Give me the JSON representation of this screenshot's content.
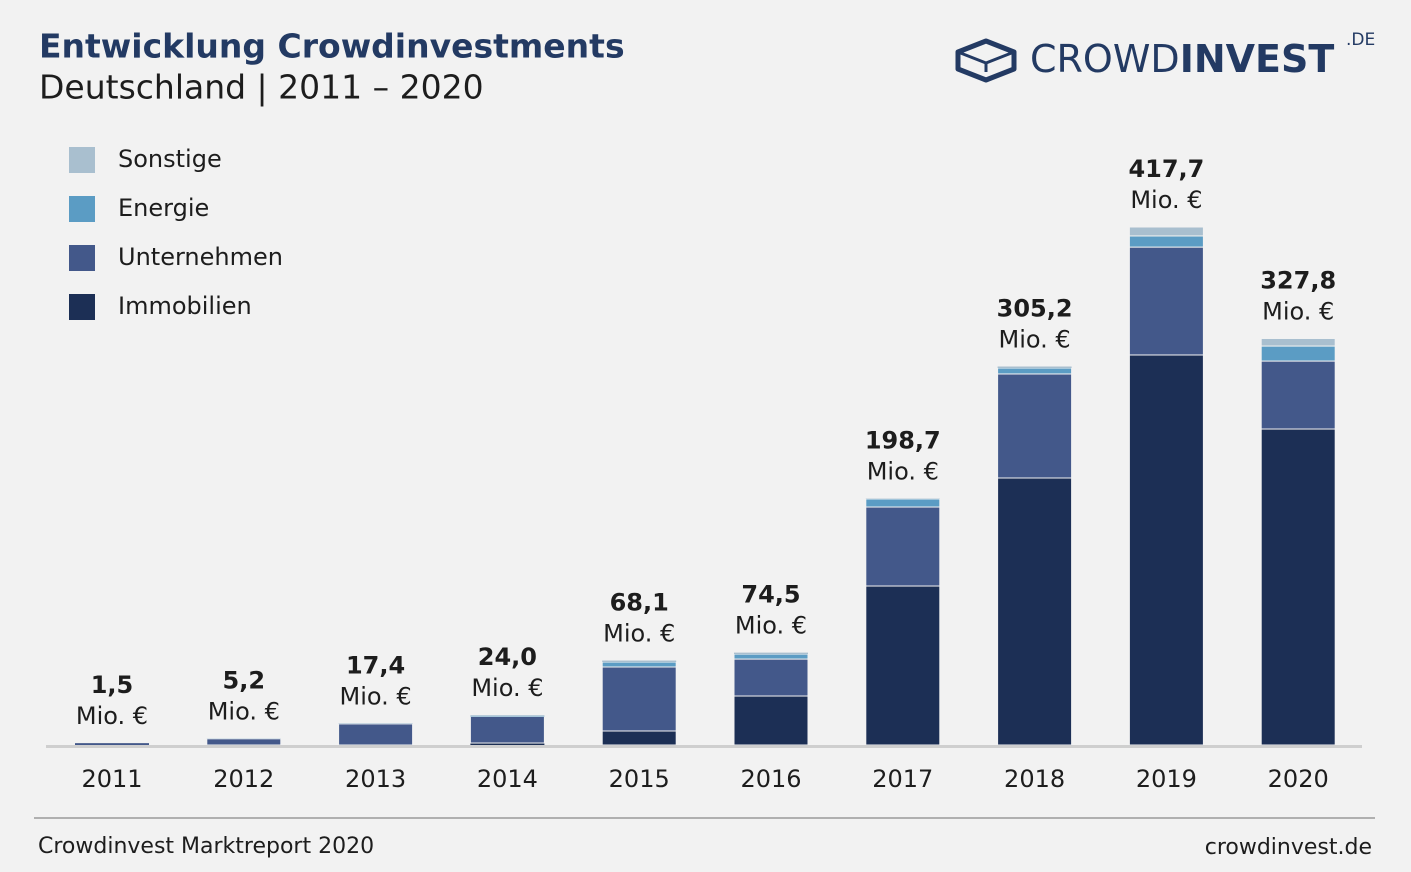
{
  "chart_data": {
    "type": "stacked_bar",
    "title": "Entwicklung Crowdinvestments",
    "subtitle": "Deutschland | 2011 – 2020",
    "categories": [
      "2011",
      "2012",
      "2013",
      "2014",
      "2015",
      "2016",
      "2017",
      "2018",
      "2019",
      "2020"
    ],
    "series": [
      {
        "name": "Immobilien",
        "color": "#1c2f55",
        "values": [
          0,
          0,
          0,
          1.6,
          11.3,
          39.5,
          128.2,
          215.3,
          314.5,
          254.8
        ]
      },
      {
        "name": "Unternehmen",
        "color": "#43588a",
        "values": [
          1.5,
          5.0,
          17.0,
          21.4,
          51.6,
          29.8,
          63.7,
          83.9,
          87.0,
          54.8
        ]
      },
      {
        "name": "Energie",
        "color": "#5b9cc4",
        "values": [
          0,
          0.1,
          0.2,
          0.6,
          4.0,
          4.0,
          6.5,
          4.8,
          9.0,
          12.1
        ]
      },
      {
        "name": "Sonstige",
        "color": "#a9bfcf",
        "values": [
          0,
          0.1,
          0.2,
          0.4,
          1.2,
          1.2,
          0.3,
          1.2,
          7.2,
          6.1
        ]
      }
    ],
    "totals": [
      1.5,
      5.2,
      17.4,
      24.0,
      68.1,
      74.5,
      198.7,
      305.2,
      417.7,
      327.8
    ],
    "total_labels": [
      "1,5",
      "5,2",
      "17,4",
      "24,0",
      "68,1",
      "74,5",
      "198,7",
      "305,2",
      "417,7",
      "327,8"
    ],
    "unit": "Mio. €",
    "legend": "top-left"
  },
  "logo": {
    "light": "CROWD",
    "bold": "INVEST",
    "suffix": ".DE"
  },
  "footer": {
    "left": "Crowdinvest Marktreport 2020",
    "right": "crowdinvest.de"
  }
}
